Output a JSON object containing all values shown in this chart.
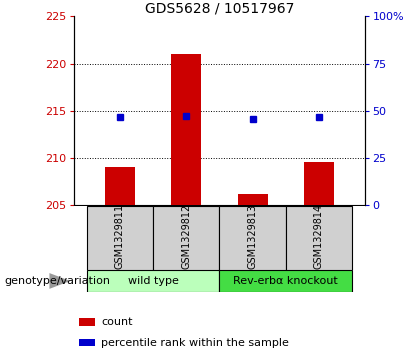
{
  "title": "GDS5628 / 10517967",
  "samples": [
    "GSM1329811",
    "GSM1329812",
    "GSM1329813",
    "GSM1329814"
  ],
  "count_values": [
    209.0,
    221.0,
    206.2,
    209.6
  ],
  "percentile_values": [
    46.5,
    47.0,
    45.5,
    46.5
  ],
  "ylim_left": [
    205,
    225
  ],
  "ylim_right": [
    0,
    100
  ],
  "yticks_left": [
    205,
    210,
    215,
    220,
    225
  ],
  "yticks_right": [
    0,
    25,
    50,
    75,
    100
  ],
  "ytick_labels_right": [
    "0",
    "25",
    "50",
    "75",
    "100%"
  ],
  "bar_color": "#cc0000",
  "dot_color": "#0000cc",
  "bar_bottom": 205.0,
  "groups": [
    {
      "label": "wild type",
      "samples": [
        0,
        1
      ],
      "color": "#bbffbb"
    },
    {
      "label": "Rev-erbα knockout",
      "samples": [
        2,
        3
      ],
      "color": "#44dd44"
    }
  ],
  "group_label": "genotype/variation",
  "legend_items": [
    {
      "color": "#cc0000",
      "label": "count"
    },
    {
      "color": "#0000cc",
      "label": "percentile rank within the sample"
    }
  ],
  "grid_color": "black",
  "title_fontsize": 10,
  "tick_fontsize": 8,
  "label_fontsize": 8,
  "sample_label_fontsize": 7,
  "group_label_fontsize": 8,
  "legend_fontsize": 8
}
